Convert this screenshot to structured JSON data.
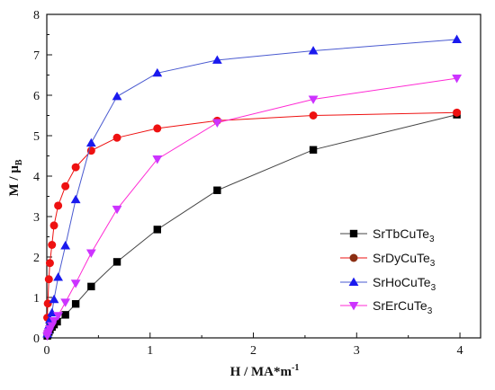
{
  "chart_data": {
    "type": "line",
    "xlabel": {
      "main": "H / MA*m",
      "sup": "-1"
    },
    "ylabel": {
      "main": "M / μ",
      "sub": "B"
    },
    "xlim": [
      0,
      4.2
    ],
    "ylim": [
      0,
      8
    ],
    "xticks": [
      0,
      1,
      2,
      3,
      4
    ],
    "xtick_labels": [
      "0",
      "1",
      "2",
      "3",
      "4"
    ],
    "yticks": [
      0,
      1,
      2,
      3,
      4,
      5,
      6,
      7,
      8
    ],
    "ytick_labels": [
      "0",
      "1",
      "2",
      "3",
      "4",
      "5",
      "6",
      "7",
      "8"
    ],
    "legend_position": "lower-right",
    "series": [
      {
        "name": "SrTbCuTe3",
        "legend": {
          "main": "SrTbCuTe",
          "sub": "3"
        },
        "color": "#000000",
        "line_color": "#444444",
        "marker": "square",
        "x": [
          0.005,
          0.01,
          0.02,
          0.03,
          0.05,
          0.07,
          0.1,
          0.18,
          0.28,
          0.43,
          0.68,
          1.07,
          1.65,
          2.58,
          3.97
        ],
        "y": [
          0.05,
          0.1,
          0.15,
          0.2,
          0.27,
          0.33,
          0.4,
          0.57,
          0.84,
          1.27,
          1.88,
          2.68,
          3.65,
          4.65,
          5.52
        ]
      },
      {
        "name": "SrDyCuTe3",
        "legend": {
          "main": "SrDyCuTe",
          "sub": "3"
        },
        "color": "#ee1111",
        "line_color": "#ee1111",
        "marker": "circle",
        "legend_marker_color": "#8b2e12",
        "x": [
          0.005,
          0.01,
          0.02,
          0.03,
          0.05,
          0.07,
          0.11,
          0.18,
          0.28,
          0.43,
          0.68,
          1.07,
          1.65,
          2.58,
          3.97
        ],
        "y": [
          0.5,
          0.85,
          1.45,
          1.85,
          2.3,
          2.78,
          3.27,
          3.75,
          4.22,
          4.63,
          4.95,
          5.18,
          5.37,
          5.5,
          5.57
        ]
      },
      {
        "name": "SrHoCuTe3",
        "legend": {
          "main": "SrHoCuTe",
          "sub": "3"
        },
        "color": "#1a1aee",
        "line_color": "#4a5ad0",
        "marker": "triangle-up",
        "x": [
          0.005,
          0.01,
          0.02,
          0.03,
          0.05,
          0.07,
          0.11,
          0.18,
          0.28,
          0.43,
          0.68,
          1.07,
          1.65,
          2.58,
          3.97
        ],
        "y": [
          0.1,
          0.18,
          0.3,
          0.45,
          0.62,
          0.95,
          1.5,
          2.28,
          3.42,
          4.82,
          5.97,
          6.55,
          6.87,
          7.1,
          7.38
        ]
      },
      {
        "name": "SrErCuTe3",
        "legend": {
          "main": "SrErCuTe",
          "sub": "3"
        },
        "color": "#cc33ff",
        "line_color": "#ff2ad4",
        "marker": "triangle-down",
        "x": [
          0.005,
          0.01,
          0.02,
          0.03,
          0.05,
          0.07,
          0.11,
          0.18,
          0.28,
          0.43,
          0.68,
          1.07,
          1.65,
          2.58,
          3.97
        ],
        "y": [
          0.05,
          0.1,
          0.15,
          0.22,
          0.3,
          0.42,
          0.55,
          0.88,
          1.35,
          2.1,
          3.18,
          4.42,
          5.32,
          5.9,
          6.42
        ]
      }
    ]
  }
}
